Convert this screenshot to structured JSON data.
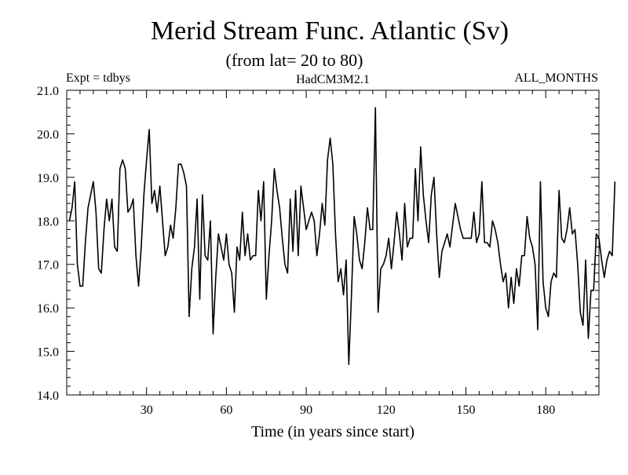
{
  "chart_data": {
    "type": "line",
    "title": "Merid Stream Func. Atlantic (Sv)",
    "subtitle": "(from lat= 20 to 80)",
    "header_left": "Expt = tdbys",
    "header_center": "HadCM3M2.1",
    "header_right": "ALL_MONTHS",
    "xlabel": "Time (in years since start)",
    "ylabel": "",
    "xlim": [
      0,
      200
    ],
    "ylim": [
      14.0,
      21.0
    ],
    "x_ticks": [
      30,
      60,
      90,
      120,
      150,
      180
    ],
    "y_ticks": [
      "14.0",
      "15.0",
      "16.0",
      "17.0",
      "18.0",
      "19.0",
      "20.0",
      "21.0"
    ],
    "grid": false,
    "line_color": "#000000",
    "series": [
      {
        "values": [
          18.0,
          18.3,
          18.9,
          17.0,
          16.5,
          16.5,
          17.5,
          18.3,
          18.6,
          18.9,
          18.2,
          16.9,
          16.8,
          17.8,
          18.5,
          18.0,
          18.5,
          17.4,
          17.3,
          19.2,
          19.4,
          19.2,
          18.2,
          18.3,
          18.5,
          17.2,
          16.5,
          17.4,
          18.6,
          19.4,
          20.1,
          18.4,
          18.7,
          18.2,
          18.8,
          18.0,
          17.2,
          17.4,
          17.9,
          17.6,
          18.3,
          19.3,
          19.3,
          19.1,
          18.8,
          15.8,
          16.9,
          17.4,
          18.5,
          16.2,
          18.6,
          17.2,
          17.1,
          18.0,
          15.4,
          16.7,
          17.7,
          17.4,
          17.1,
          17.7,
          17.0,
          16.8,
          15.9,
          17.4,
          17.1,
          18.2,
          17.2,
          17.7,
          17.1,
          17.2,
          17.2,
          18.7,
          18.0,
          18.9,
          16.2,
          17.2,
          18.0,
          19.2,
          18.7,
          18.3,
          17.6,
          17.0,
          16.8,
          18.5,
          17.3,
          18.7,
          17.2,
          18.8,
          18.3,
          17.8,
          18.0,
          18.2,
          18.0,
          17.2,
          17.7,
          18.4,
          17.9,
          19.4,
          19.9,
          19.3,
          17.7,
          16.6,
          16.9,
          16.3,
          17.1,
          14.7,
          16.3,
          18.1,
          17.7,
          17.1,
          16.9,
          17.5,
          18.3,
          17.8,
          17.8,
          20.6,
          15.9,
          16.9,
          17.0,
          17.2,
          17.6,
          16.9,
          17.5,
          18.2,
          17.7,
          17.1,
          18.4,
          17.4,
          17.6,
          17.6,
          19.2,
          18.0,
          19.7,
          18.6,
          18.0,
          17.5,
          18.6,
          19.0,
          17.7,
          16.7,
          17.3,
          17.5,
          17.7,
          17.4,
          17.9,
          18.4,
          18.1,
          17.8,
          17.6,
          17.6,
          17.6,
          17.6,
          18.2,
          17.5,
          17.7,
          18.9,
          17.5,
          17.5,
          17.4,
          18.0,
          17.8,
          17.5,
          17.0,
          16.6,
          16.8,
          16.0,
          16.7,
          16.1,
          16.9,
          16.5,
          17.2,
          17.2,
          18.1,
          17.6,
          17.4,
          17.0,
          15.5,
          18.9,
          16.6,
          16.0,
          15.8,
          16.6,
          16.8,
          16.7,
          18.7,
          17.6,
          17.5,
          17.8,
          18.3,
          17.7,
          17.8,
          17.0,
          15.9,
          15.6,
          17.1,
          15.3,
          16.4,
          16.4,
          17.7,
          17.6,
          17.1,
          16.7,
          17.1,
          17.3,
          17.2,
          18.9
        ]
      }
    ]
  }
}
